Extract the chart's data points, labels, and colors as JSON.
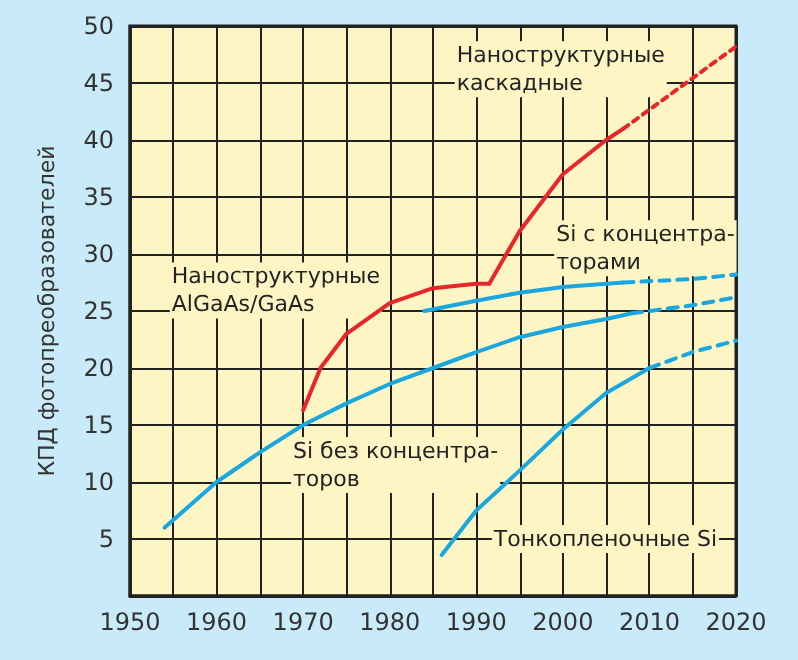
{
  "chart_data": {
    "type": "line",
    "ylabel": "КПД фотопреобразователей",
    "xlim": [
      1950,
      2020
    ],
    "xticks": [
      1950,
      {
        "value": 1955,
        "label": null
      },
      1960,
      {
        "value": 1965,
        "label": null
      },
      1970,
      {
        "value": 1975,
        "label": null
      },
      1980,
      {
        "value": 1985,
        "label": null
      },
      1990,
      {
        "value": 1995,
        "label": null
      },
      2000,
      {
        "value": 2005,
        "label": null
      },
      2010,
      {
        "value": 2015,
        "label": null
      },
      2020
    ],
    "ylim": [
      0,
      50
    ],
    "yticks": [
      {
        "value": 0,
        "label": null
      },
      5,
      10,
      15,
      20,
      25,
      30,
      35,
      40,
      45,
      50
    ],
    "grid": true,
    "marker": "none",
    "legend": false,
    "series": [
      {
        "name": "Наноструктурные\nAlGaAs/GaAs",
        "color": "#e8262a",
        "line_style": "solid",
        "x": [
          1970,
          1972,
          1975,
          1980,
          1985,
          1990,
          1991.5
        ],
        "values": [
          16.3,
          20,
          23,
          25.7,
          27,
          27.4,
          27.4
        ]
      },
      {
        "name": "Наноструктурные\nкаскадные",
        "color": "#e8262a",
        "line_style": "solid",
        "x": [
          1991.5,
          1995,
          1998,
          2000,
          2005,
          2007
        ],
        "values": [
          27.4,
          32,
          35,
          37,
          40,
          41
        ]
      },
      {
        "color": "#e8262a",
        "line_style": "dotted",
        "x": [
          2007,
          2020
        ],
        "values": [
          41,
          48.2
        ]
      },
      {
        "name": "Si без концентра-\nторов",
        "color": "#1aa7e0",
        "line_style": "solid",
        "x": [
          1954,
          1960,
          1965,
          1970,
          1975,
          1980,
          1985,
          1990,
          1995,
          2000,
          2005,
          2008
        ],
        "values": [
          6,
          10,
          12.6,
          15,
          16.9,
          18.6,
          20,
          21.4,
          22.7,
          23.6,
          24.3,
          24.8
        ]
      },
      {
        "color": "#1aa7e0",
        "line_style": "dashed",
        "x": [
          2008,
          2015,
          2020
        ],
        "values": [
          24.8,
          25.5,
          26.2
        ]
      },
      {
        "name": "Si с концентра-\nторами",
        "color": "#1aa7e0",
        "line_style": "solid",
        "x": [
          1984,
          1990,
          1995,
          2000,
          2005,
          2007
        ],
        "values": [
          25,
          25.9,
          26.6,
          27.1,
          27.4,
          27.5
        ]
      },
      {
        "color": "#1aa7e0",
        "line_style": "dashed",
        "x": [
          2007,
          2015,
          2020
        ],
        "values": [
          27.5,
          27.8,
          28.2
        ]
      },
      {
        "name": "Тонкопленочные Si",
        "color": "#1aa7e0",
        "line_style": "solid",
        "x": [
          1986,
          1990,
          1995,
          2000,
          2005,
          2010
        ],
        "values": [
          3.6,
          7.5,
          11,
          14.6,
          17.8,
          20
        ]
      },
      {
        "color": "#1aa7e0",
        "line_style": "dashed",
        "x": [
          2010,
          2015,
          2020
        ],
        "values": [
          20,
          21.4,
          22.4
        ]
      }
    ]
  }
}
